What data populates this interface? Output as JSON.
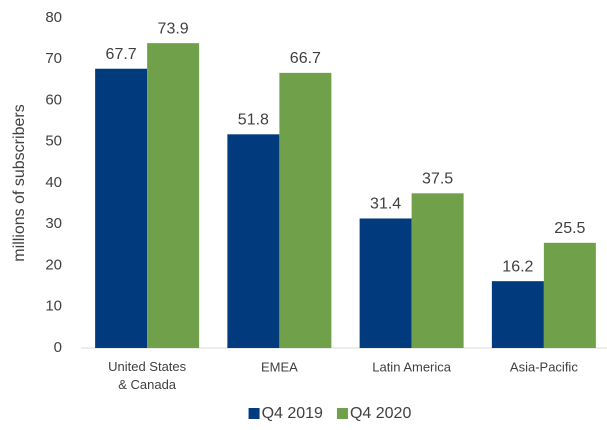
{
  "chart_data": {
    "type": "bar",
    "y_label": "millions of subscribers",
    "categories": [
      "United States & Canada",
      "EMEA",
      "Latin America",
      "Asia-Pacific"
    ],
    "series": [
      {
        "name": "Q4 2019",
        "color": "#013a7d",
        "values": [
          67.7,
          51.8,
          31.4,
          16.2
        ]
      },
      {
        "name": "Q4 2020",
        "color": "#70a04a",
        "values": [
          73.9,
          66.7,
          37.5,
          25.5
        ]
      }
    ],
    "ylim": [
      0,
      80
    ],
    "yticks": [
      0,
      10,
      20,
      30,
      40,
      50,
      60,
      70,
      80
    ],
    "legend": "bottom",
    "grid": false
  }
}
